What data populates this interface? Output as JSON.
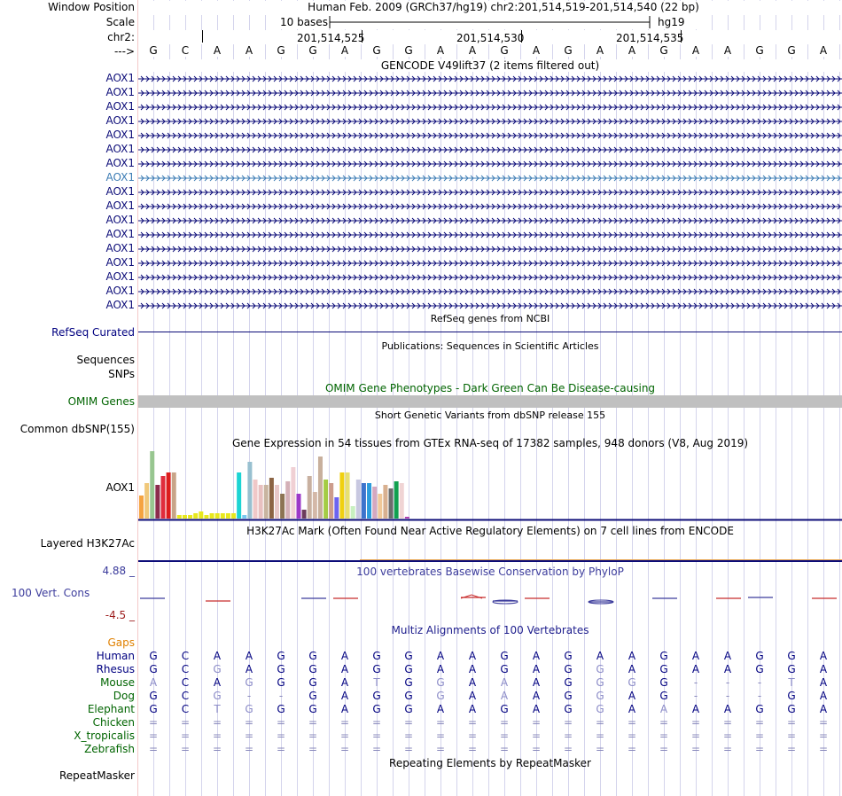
{
  "header": {
    "window_position_label": "Window Position",
    "scale_label": "Scale",
    "chrom_label": "chr2:",
    "strand_label": "--->",
    "assembly_title": "Human Feb. 2009 (GRCh37/hg19)   chr2:201,514,519-201,514,540 (22 bp)",
    "scale_text": "10 bases",
    "db_label": "hg19",
    "positions": [
      "201,514,525",
      "201,514,530",
      "201,514,535"
    ]
  },
  "sequence": [
    "G",
    "C",
    "A",
    "A",
    "G",
    "G",
    "A",
    "G",
    "G",
    "A",
    "A",
    "G",
    "A",
    "G",
    "A",
    "A",
    "G",
    "A",
    "A",
    "G",
    "G",
    "A"
  ],
  "tracks": {
    "gencode": {
      "title": "GENCODE V49lift37 (2 items filtered out)",
      "items": [
        "AOX1",
        "AOX1",
        "AOX1",
        "AOX1",
        "AOX1",
        "AOX1",
        "AOX1",
        "AOX1",
        "AOX1",
        "AOX1",
        "AOX1",
        "AOX1",
        "AOX1",
        "AOX1",
        "AOX1",
        "AOX1",
        "AOX1"
      ],
      "color": "#0c0c78",
      "highlight_color": "#3c7cb4"
    },
    "refseq": {
      "title": "RefSeq genes from NCBI",
      "label": "RefSeq Curated"
    },
    "publications": {
      "title": "Publications: Sequences in Scientific Articles",
      "label1": "Sequences",
      "label2": "SNPs"
    },
    "omim": {
      "title": "OMIM Gene Phenotypes - Dark Green Can Be Disease-causing",
      "label": "OMIM Genes",
      "color": "#006400"
    },
    "dbsnp": {
      "title": "Short Genetic Variants from dbSNP release 155",
      "label": "Common dbSNP(155)"
    },
    "gtex": {
      "title": "Gene Expression in 54 tissues from GTEx RNA-seq of 17382 samples, 948 donors (V8, Aug 2019)",
      "label": "AOX1"
    },
    "h3k27ac": {
      "title": "H3K27Ac Mark (Often Found Near Active Regulatory Elements) on 7 cell lines from ENCODE",
      "label": "Layered H3K27Ac"
    },
    "phylop": {
      "title": "100 vertebrates Basewise Conservation by PhyloP",
      "label": "100 Vert. Cons",
      "max": "4.88 _",
      "min": "-4.5 _"
    },
    "multiz": {
      "title": "Multiz Alignments of 100 Vertebrates",
      "gaps_label": "Gaps",
      "species": [
        {
          "name": "Human",
          "seq": [
            "G",
            "C",
            "A",
            "A",
            "G",
            "G",
            "A",
            "G",
            "G",
            "A",
            "A",
            "G",
            "A",
            "G",
            "A",
            "A",
            "G",
            "A",
            "A",
            "G",
            "G",
            "A"
          ]
        },
        {
          "name": "Rhesus",
          "seq": [
            "G",
            "C",
            "G",
            "A",
            "G",
            "G",
            "A",
            "G",
            "G",
            "A",
            "A",
            "G",
            "A",
            "G",
            "G",
            "A",
            "G",
            "A",
            "A",
            "G",
            "G",
            "A"
          ]
        },
        {
          "name": "Mouse",
          "seq": [
            "A",
            "C",
            "A",
            "G",
            "G",
            "G",
            "A",
            "T",
            "G",
            "G",
            "A",
            "A",
            "A",
            "G",
            "G",
            "G",
            "G",
            "-",
            "-",
            "-",
            "T",
            "A"
          ]
        },
        {
          "name": "Dog",
          "seq": [
            "G",
            "C",
            "G",
            "-",
            "-",
            "G",
            "A",
            "G",
            "G",
            "G",
            "A",
            "A",
            "A",
            "G",
            "G",
            "A",
            "G",
            "-",
            "-",
            "-",
            "G",
            "A"
          ]
        },
        {
          "name": "Elephant",
          "seq": [
            "G",
            "C",
            "T",
            "G",
            "G",
            "G",
            "A",
            "G",
            "G",
            "A",
            "A",
            "G",
            "A",
            "G",
            "G",
            "A",
            "A",
            "A",
            "A",
            "G",
            "G",
            "A"
          ]
        },
        {
          "name": "Chicken",
          "seq": [
            "=",
            "=",
            "=",
            "=",
            "=",
            "=",
            "=",
            "=",
            "=",
            "=",
            "=",
            "=",
            "=",
            "=",
            "=",
            "=",
            "=",
            "=",
            "=",
            "=",
            "=",
            "="
          ]
        },
        {
          "name": "X_tropicalis",
          "seq": [
            "=",
            "=",
            "=",
            "=",
            "=",
            "=",
            "=",
            "=",
            "=",
            "=",
            "=",
            "=",
            "=",
            "=",
            "=",
            "=",
            "=",
            "=",
            "=",
            "=",
            "=",
            "="
          ]
        },
        {
          "name": "Zebrafish",
          "seq": [
            "=",
            "=",
            "=",
            "=",
            "=",
            "=",
            "=",
            "=",
            "=",
            "=",
            "=",
            "=",
            "=",
            "=",
            "=",
            "=",
            "=",
            "=",
            "=",
            "=",
            "=",
            "="
          ]
        }
      ]
    },
    "repeatmasker": {
      "title": "Repeating Elements by RepeatMasker",
      "label": "RepeatMasker"
    }
  }
}
